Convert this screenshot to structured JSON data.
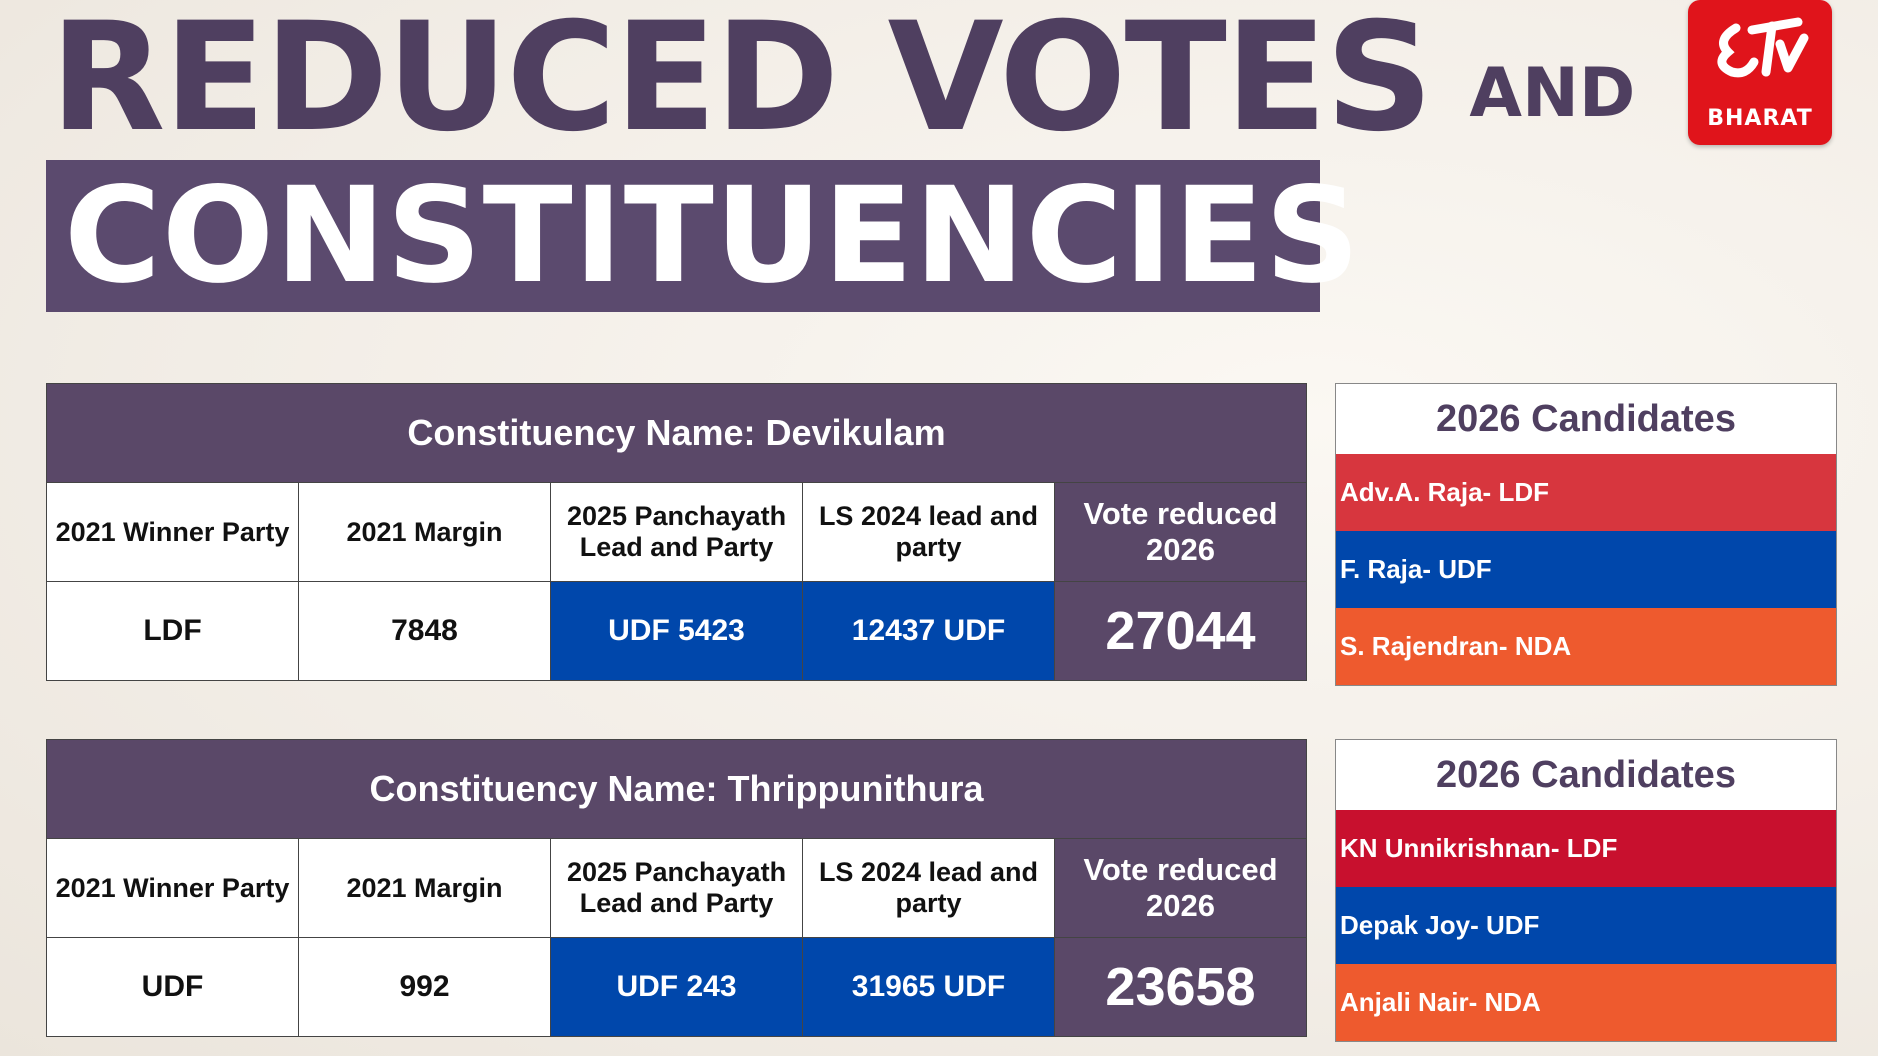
{
  "title": {
    "line1": "REDUCED VOTES",
    "and": "AND",
    "line2": "CONSTITUENCIES"
  },
  "logo": {
    "icon": "etv-logo-icon",
    "text": "BHARAT",
    "color": "#e0141b"
  },
  "column_headers": {
    "winner": "2021 Winner Party",
    "margin": "2021 Margin",
    "panchayath": "2025 Panchayath Lead and Party",
    "ls2024": "LS 2024 lead and party",
    "vote_reduced": "Vote reduced 2026"
  },
  "candidates_title": "2026 Candidates",
  "colors": {
    "purple": "#5a4868",
    "udf_blue": "#0047ab",
    "ldf_red_1": "#d7363e",
    "ldf_red_2": "#c8102e",
    "nda_orange": "#ee5a2e"
  },
  "constituencies": [
    {
      "header": "Constituency Name: Devikulam",
      "winner": "LDF",
      "margin": "7848",
      "panchayath": "UDF 5423",
      "ls2024": "12437 UDF",
      "vote_reduced": "27044",
      "candidates": [
        {
          "label": "Adv.A. Raja- LDF",
          "color": "#d7363e"
        },
        {
          "label": "F. Raja- UDF",
          "color": "#0047ab"
        },
        {
          "label": "S. Rajendran- NDA",
          "color": "#ee5a2e"
        }
      ]
    },
    {
      "header": "Constituency Name: Thrippunithura",
      "winner": "UDF",
      "margin": "992",
      "panchayath": "UDF 243",
      "ls2024": "31965 UDF",
      "vote_reduced": "23658",
      "candidates": [
        {
          "label": "KN Unnikrishnan- LDF",
          "color": "#c8102e"
        },
        {
          "label": "Depak Joy- UDF",
          "color": "#0047ab"
        },
        {
          "label": "Anjali Nair- NDA",
          "color": "#ee5a2e"
        }
      ]
    }
  ]
}
